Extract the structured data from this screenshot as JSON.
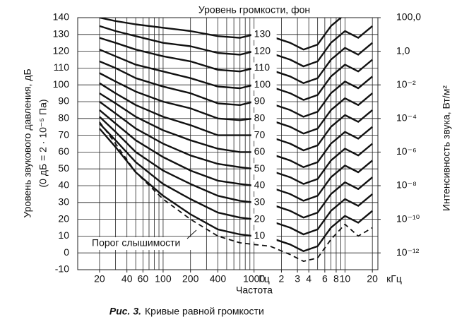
{
  "chart_data": {
    "type": "line",
    "title": "Уровень громкости, фон",
    "x_label": "Частота",
    "y_label": "Уровень звукового давления, дБ",
    "y_label_note": "(0 дБ = 2 · 10⁻⁵ Па)",
    "y2_label": "Интенсивность звука, Вт/м²",
    "caption_label": "Рис. 3.",
    "caption": "Кривые равной громкости",
    "x_unit_hz": "Гц",
    "x_unit_khz": "кГц",
    "x_log": true,
    "x": [
      20,
      30,
      50,
      100,
      200,
      400,
      700,
      1000,
      1500,
      2500,
      3500,
      5000,
      7000,
      10000,
      14000,
      20000
    ],
    "xlim": [
      11.5,
      23000
    ],
    "xticks": [
      20,
      40,
      60,
      100,
      200,
      400,
      1000,
      {
        "value": 2000,
        "label": "2"
      },
      {
        "value": 3000,
        "label": "3"
      },
      {
        "value": 4000,
        "label": "4"
      },
      {
        "value": 6000,
        "label": "6"
      },
      {
        "value": 8000,
        "label": "8"
      },
      {
        "value": 10000,
        "label": "10"
      },
      {
        "value": 20000,
        "label": "20"
      }
    ],
    "xgrid": [
      20,
      30,
      40,
      50,
      60,
      70,
      80,
      90,
      100,
      200,
      300,
      400,
      500,
      600,
      700,
      800,
      900,
      1000,
      2000,
      3000,
      4000,
      5000,
      6000,
      7000,
      8000,
      9000,
      10000,
      20000
    ],
    "ylim": [
      -10,
      140
    ],
    "yticks": [
      -10,
      0,
      10,
      20,
      30,
      40,
      50,
      60,
      70,
      80,
      90,
      100,
      110,
      120,
      130,
      140
    ],
    "y2_log": true,
    "y2lim": [
      1e-13,
      100
    ],
    "y2ticks": [
      {
        "value": 100,
        "label": "100,0"
      },
      {
        "value": 1,
        "label": "1,0"
      },
      {
        "value": 0.01,
        "label": "10⁻²"
      },
      {
        "value": 0.0001,
        "label": "10⁻⁴"
      },
      {
        "value": 1e-06,
        "label": "10⁻⁶"
      },
      {
        "value": 1e-08,
        "label": "10⁻⁸"
      },
      {
        "value": 1e-10,
        "label": "10⁻¹⁰"
      },
      {
        "value": 1e-12,
        "label": "10⁻¹²"
      }
    ],
    "grid": true,
    "series": [
      {
        "name": "Порог слышимости",
        "color": "#111111",
        "dash": true,
        "values": [
          78,
          65,
          48,
          32,
          20,
          10,
          6,
          5,
          4,
          -1,
          -5,
          -3,
          8,
          17,
          10,
          15
        ]
      },
      {
        "name": "10",
        "color": "#111111",
        "values": [
          74,
          63,
          48,
          34,
          23,
          14,
          11,
          10,
          9,
          5,
          1,
          4,
          15,
          22,
          18,
          25
        ]
      },
      {
        "name": "20",
        "color": "#111111",
        "values": [
          77,
          67,
          54,
          41,
          32,
          24,
          21,
          20,
          19,
          15,
          11,
          14,
          25,
          32,
          28,
          35
        ]
      },
      {
        "name": "30",
        "color": "#111111",
        "values": [
          81,
          72,
          60,
          49,
          41,
          34,
          31,
          30,
          29,
          25,
          21,
          24,
          35,
          42,
          38,
          45
        ]
      },
      {
        "name": "40",
        "color": "#111111",
        "values": [
          85,
          77,
          67,
          57,
          49,
          43,
          41,
          40,
          39,
          35,
          31,
          34,
          45,
          52,
          48,
          55
        ]
      },
      {
        "name": "50",
        "color": "#111111",
        "values": [
          90,
          83,
          74,
          65,
          58,
          53,
          51,
          50,
          49,
          45,
          41,
          44,
          55,
          62,
          58,
          65
        ]
      },
      {
        "name": "60",
        "color": "#111111",
        "values": [
          95,
          89,
          81,
          73,
          67,
          62,
          60,
          60,
          59,
          55,
          51,
          54,
          65,
          72,
          68,
          75
        ]
      },
      {
        "name": "70",
        "color": "#111111",
        "values": [
          101,
          95,
          88,
          81,
          76,
          70,
          70,
          70,
          69,
          65,
          61,
          64,
          75,
          82,
          78,
          85
        ]
      },
      {
        "name": "80",
        "color": "#111111",
        "values": [
          107,
          102,
          96,
          90,
          86,
          80,
          79,
          80,
          79,
          75,
          71,
          74,
          85,
          92,
          88,
          95
        ]
      },
      {
        "name": "90",
        "color": "#111111",
        "values": [
          114,
          110,
          104,
          99,
          95,
          89,
          88,
          90,
          89,
          85,
          81,
          84,
          95,
          102,
          98,
          105
        ]
      },
      {
        "name": "100",
        "color": "#111111",
        "values": [
          121,
          117,
          112,
          108,
          104,
          99,
          98,
          100,
          99,
          95,
          91,
          94,
          105,
          112,
          108,
          115
        ]
      },
      {
        "name": "110",
        "color": "#111111",
        "values": [
          128,
          125,
          121,
          117,
          114,
          109,
          108,
          110,
          109,
          105,
          101,
          104,
          115,
          122,
          118,
          125
        ]
      },
      {
        "name": "120",
        "color": "#111111",
        "values": [
          135,
          132,
          129,
          125,
          123,
          119,
          118,
          120,
          119,
          115,
          111,
          114,
          125,
          132,
          128,
          135
        ]
      },
      {
        "name": "130",
        "color": "#111111",
        "values": [
          140,
          138,
          136,
          134,
          132,
          129,
          128,
          130,
          129,
          125,
          121,
          124,
          135,
          142,
          null,
          null
        ]
      }
    ]
  }
}
